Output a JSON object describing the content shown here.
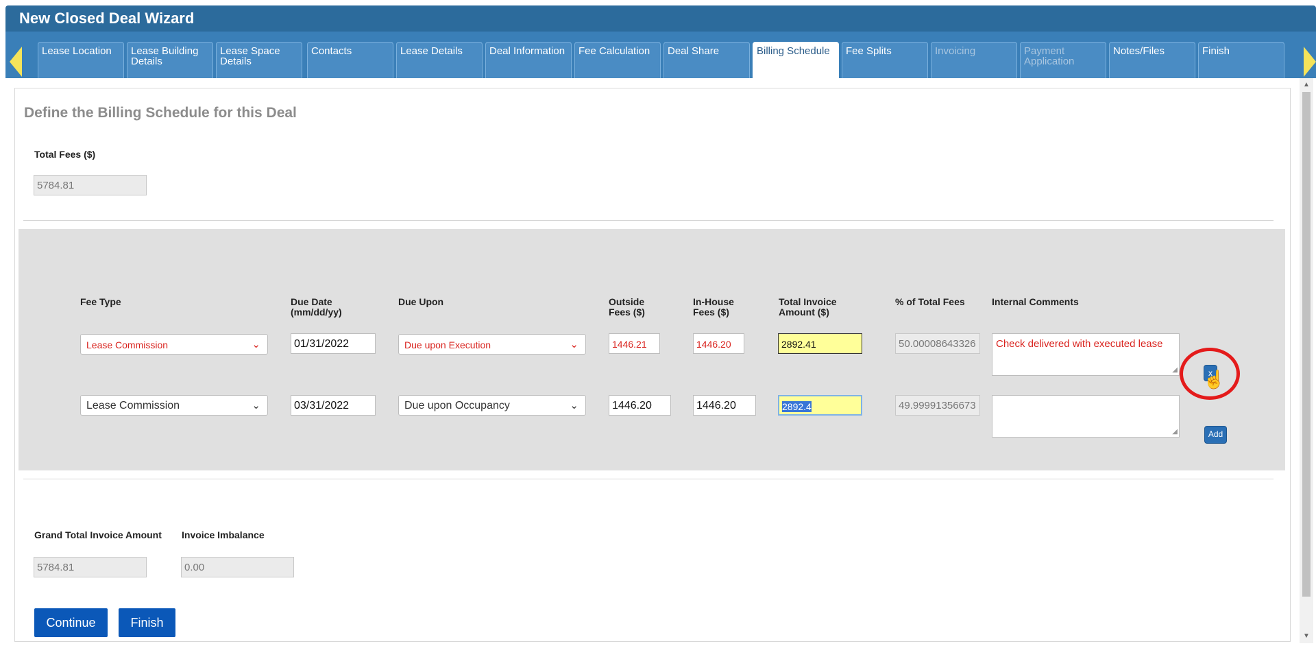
{
  "window": {
    "title": "New Closed Deal Wizard"
  },
  "tabs": [
    {
      "label": "Lease Location",
      "state": "normal"
    },
    {
      "label": "Lease Building Details",
      "state": "normal"
    },
    {
      "label": "Lease Space Details",
      "state": "normal"
    },
    {
      "label": "Contacts",
      "state": "normal"
    },
    {
      "label": "Lease Details",
      "state": "normal"
    },
    {
      "label": "Deal Information",
      "state": "normal"
    },
    {
      "label": "Fee Calculation",
      "state": "normal"
    },
    {
      "label": "Deal Share",
      "state": "normal"
    },
    {
      "label": "Billing Schedule",
      "state": "active"
    },
    {
      "label": "Fee Splits",
      "state": "normal"
    },
    {
      "label": "Invoicing",
      "state": "disabled"
    },
    {
      "label": "Payment Application",
      "state": "disabled"
    },
    {
      "label": "Notes/Files",
      "state": "normal"
    },
    {
      "label": "Finish",
      "state": "normal"
    }
  ],
  "page": {
    "title": "Define the Billing Schedule for this Deal",
    "total_fees_label": "Total Fees ($)",
    "total_fees_value": "5784.81"
  },
  "grid": {
    "headers": {
      "fee_type": "Fee Type",
      "due_date_1": "Due Date",
      "due_date_2": "(mm/dd/yy)",
      "due_upon": "Due Upon",
      "outside_1": "Outside",
      "outside_2": "Fees ($)",
      "inhouse_1": "In-House",
      "inhouse_2": "Fees ($)",
      "total_1": "Total Invoice",
      "total_2": "Amount ($)",
      "pct": "% of Total Fees",
      "comments": "Internal Comments"
    },
    "rows": [
      {
        "fee_type": "Lease Commission",
        "due_date": "01/31/2022",
        "due_upon": "Due upon Execution",
        "outside_fees": "1446.21",
        "inhouse_fees": "1446.20",
        "total_invoice": "2892.41",
        "pct_total": "50.00008643326",
        "comment": "Check delivered with executed lease",
        "action_label": "x"
      },
      {
        "fee_type": "Lease Commission",
        "due_date": "03/31/2022",
        "due_upon": "Due upon Occupancy",
        "outside_fees": "1446.20",
        "inhouse_fees": "1446.20",
        "total_invoice": "2892.4",
        "pct_total": "49.99991356673",
        "comment": "",
        "action_label": "Add"
      }
    ]
  },
  "summary": {
    "grand_total_label": "Grand Total Invoice Amount",
    "grand_total_value": "5784.81",
    "imbalance_label": "Invoice Imbalance",
    "imbalance_value": "0.00"
  },
  "buttons": {
    "continue": "Continue",
    "finish": "Finish"
  },
  "icons": {
    "chevron": "chevron-down-icon",
    "cursor": "hand-pointer-icon",
    "nav_prev": "arrow-left-icon",
    "nav_next": "arrow-right-icon"
  },
  "colors": {
    "header": "#2c6b9c",
    "tab": "#4a8cc4",
    "error": "#d9231e",
    "highlight": "#ffff99",
    "button": "#0b58b8",
    "annotation": "#e41b1b"
  }
}
